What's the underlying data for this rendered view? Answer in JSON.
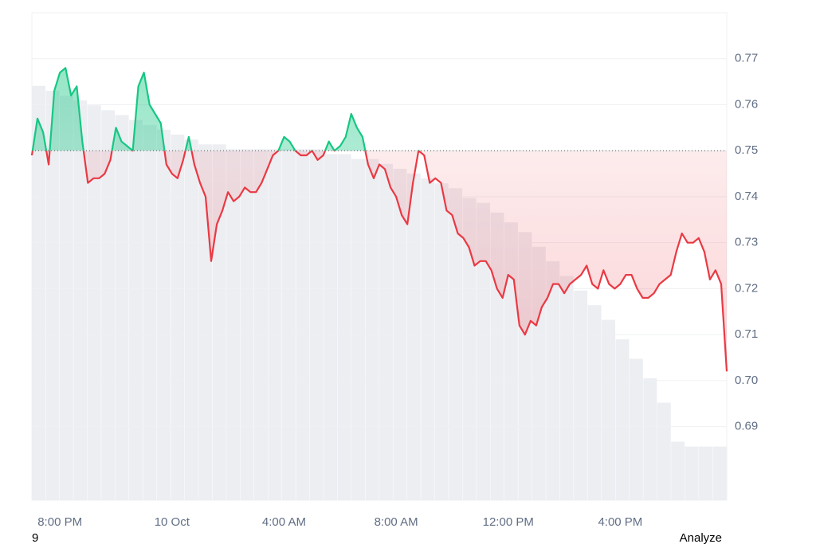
{
  "chart_data": {
    "type": "line",
    "values": [
      0.749,
      0.757,
      0.754,
      0.747,
      0.763,
      0.767,
      0.768,
      0.762,
      0.764,
      0.752,
      0.743,
      0.744,
      0.744,
      0.745,
      0.748,
      0.755,
      0.752,
      0.751,
      0.75,
      0.764,
      0.767,
      0.76,
      0.758,
      0.756,
      0.747,
      0.745,
      0.744,
      0.748,
      0.753,
      0.747,
      0.743,
      0.74,
      0.726,
      0.734,
      0.737,
      0.741,
      0.739,
      0.74,
      0.742,
      0.741,
      0.741,
      0.743,
      0.746,
      0.749,
      0.75,
      0.753,
      0.752,
      0.75,
      0.749,
      0.749,
      0.75,
      0.748,
      0.749,
      0.752,
      0.75,
      0.751,
      0.753,
      0.758,
      0.755,
      0.753,
      0.747,
      0.744,
      0.747,
      0.746,
      0.742,
      0.74,
      0.736,
      0.734,
      0.743,
      0.75,
      0.749,
      0.743,
      0.744,
      0.743,
      0.737,
      0.736,
      0.732,
      0.731,
      0.729,
      0.725,
      0.726,
      0.726,
      0.724,
      0.72,
      0.718,
      0.723,
      0.722,
      0.712,
      0.71,
      0.713,
      0.712,
      0.716,
      0.718,
      0.721,
      0.721,
      0.719,
      0.721,
      0.722,
      0.723,
      0.725,
      0.721,
      0.72,
      0.724,
      0.721,
      0.72,
      0.721,
      0.723,
      0.723,
      0.72,
      0.718,
      0.718,
      0.719,
      0.721,
      0.722,
      0.723,
      0.728,
      0.732,
      0.73,
      0.73,
      0.731,
      0.728,
      0.722,
      0.724,
      0.721,
      0.702
    ],
    "baseline": 0.75,
    "up_color": "#16c784",
    "down_color": "#ea3943",
    "xlim": [
      0,
      124
    ],
    "xticks": [
      {
        "value": 5,
        "label": "8:00 PM"
      },
      {
        "value": 25,
        "label": "10 Oct"
      },
      {
        "value": 45,
        "label": "4:00 AM"
      },
      {
        "value": 65,
        "label": "8:00 AM"
      },
      {
        "value": 85,
        "label": "12:00 PM"
      },
      {
        "value": 105,
        "label": "4:00 PM"
      }
    ],
    "ylim": [
      0.674,
      0.78
    ],
    "yticks": [
      {
        "value": 0.69,
        "label": "0.69"
      },
      {
        "value": 0.7,
        "label": "0.70"
      },
      {
        "value": 0.71,
        "label": "0.71"
      },
      {
        "value": 0.72,
        "label": "0.72"
      },
      {
        "value": 0.73,
        "label": "0.73"
      },
      {
        "value": 0.74,
        "label": "0.74"
      },
      {
        "value": 0.75,
        "label": "0.75"
      },
      {
        "value": 0.76,
        "label": "0.76"
      },
      {
        "value": 0.77,
        "label": "0.77"
      }
    ],
    "grid": true,
    "volume": {
      "axis": "y2",
      "color": "#eceef2",
      "values": [
        85,
        84,
        83,
        82,
        81,
        80,
        79,
        78,
        77,
        76,
        75,
        74,
        73,
        73,
        72,
        72,
        72,
        72,
        72,
        72,
        72,
        71,
        71,
        70,
        70,
        69,
        68,
        67,
        66,
        65,
        64,
        62,
        61,
        59,
        57,
        55,
        52,
        49,
        46,
        43,
        40,
        37,
        33,
        29,
        25,
        20,
        12,
        11,
        11,
        11
      ]
    },
    "y2lim": [
      0,
      100
    ],
    "footer_left": "9",
    "footer_right": "Analyze"
  }
}
